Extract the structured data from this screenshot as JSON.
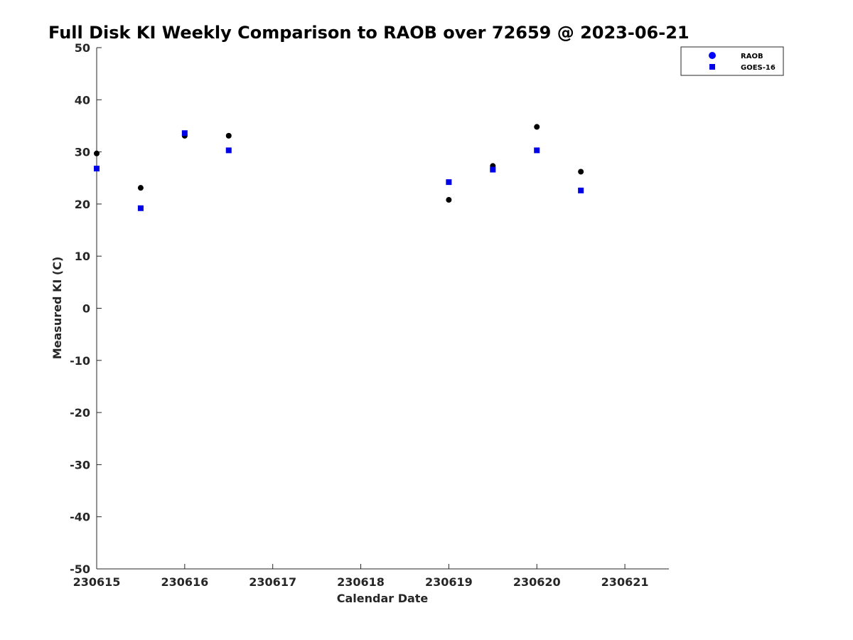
{
  "chart_data": {
    "type": "scatter",
    "title": "Full Disk KI Weekly Comparison to RAOB over 72659 @ 2023-06-21",
    "xlabel": "Calendar Date",
    "ylabel": "Measured KI (C)",
    "xlim": [
      0,
      6.5
    ],
    "ylim": [
      -50,
      50
    ],
    "x_ticks": [
      0,
      1,
      2,
      3,
      4,
      5,
      6
    ],
    "x_tick_labels": [
      "230615",
      "230616",
      "230617",
      "230618",
      "230619",
      "230620",
      "230621"
    ],
    "y_ticks": [
      -50,
      -40,
      -30,
      -20,
      -10,
      0,
      10,
      20,
      30,
      40,
      50
    ],
    "y_tick_labels": [
      "-50",
      "-40",
      "-30",
      "-20",
      "-10",
      "0",
      "10",
      "20",
      "30",
      "40",
      "50"
    ],
    "grid": false,
    "legend_position": "top-right",
    "series": [
      {
        "name": "RAOB",
        "marker": "circle",
        "marker_color": "#000000",
        "legend_color": "#0000ff",
        "x": [
          0,
          0.5,
          1,
          1.5,
          4,
          4.5,
          5,
          5.5
        ],
        "y": [
          29.7,
          23.1,
          33.1,
          33.1,
          20.8,
          27.3,
          34.8,
          26.2
        ]
      },
      {
        "name": "GOES-16",
        "marker": "square",
        "marker_color": "#0000e6",
        "legend_color": "#0000e6",
        "x": [
          0,
          0.5,
          1,
          1.5,
          4,
          4.5,
          5,
          5.5
        ],
        "y": [
          26.8,
          19.2,
          33.6,
          30.3,
          24.2,
          26.6,
          30.3,
          22.6
        ]
      }
    ]
  }
}
